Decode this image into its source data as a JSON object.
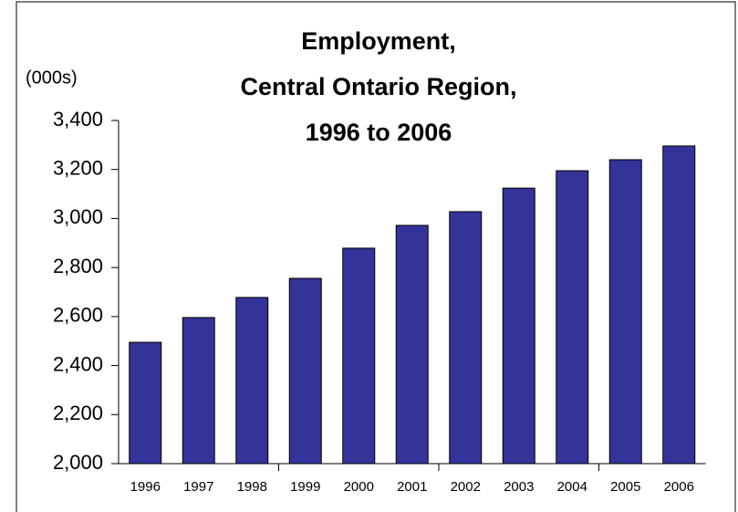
{
  "chart_data": {
    "type": "bar",
    "title": [
      "Employment,",
      "Central Ontario Region,",
      "1996 to 2006"
    ],
    "y_label": "(000s)",
    "categories": [
      "1996",
      "1997",
      "1998",
      "1999",
      "2000",
      "2001",
      "2002",
      "2003",
      "2004",
      "2005",
      "2006"
    ],
    "values": [
      2495,
      2596,
      2678,
      2756,
      2879,
      2972,
      3028,
      3124,
      3195,
      3240,
      3296
    ],
    "color": "#333399",
    "ylim": [
      2000,
      3400
    ],
    "yticks": [
      {
        "value": 2000,
        "label": "2,000"
      },
      {
        "value": 2200,
        "label": "2,200"
      },
      {
        "value": 2400,
        "label": "2,400"
      },
      {
        "value": 2600,
        "label": "2,600"
      },
      {
        "value": 2800,
        "label": "2,800"
      },
      {
        "value": 3000,
        "label": "3,000"
      },
      {
        "value": 3200,
        "label": "3,200"
      },
      {
        "value": 3400,
        "label": "3,400"
      }
    ],
    "grid": false
  }
}
